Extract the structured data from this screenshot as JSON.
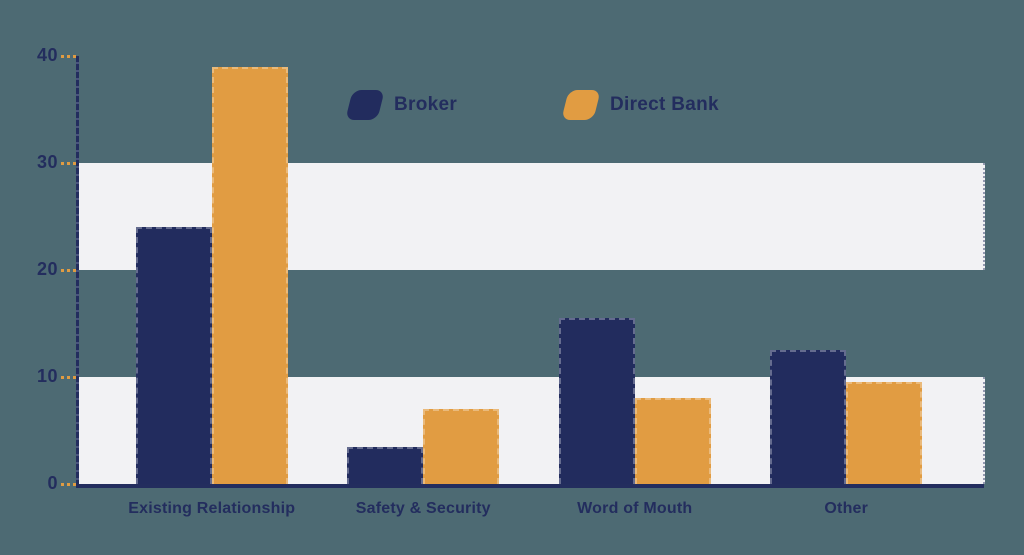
{
  "chart_data": {
    "type": "bar",
    "title": "",
    "xlabel": "",
    "ylabel": "",
    "categories": [
      "Existing Relationship",
      "Safety & Security",
      "Word of Mouth",
      "Other"
    ],
    "series": [
      {
        "name": "Broker",
        "color": "#222c5e",
        "values": [
          24,
          3.5,
          15.5,
          12.5
        ]
      },
      {
        "name": "Direct Bank",
        "color": "#e19c42",
        "values": [
          39,
          7,
          8,
          9.5
        ]
      }
    ],
    "yticks": [
      0,
      10,
      20,
      30,
      40
    ],
    "ylim": [
      0,
      40
    ],
    "grid_bands": [
      [
        20,
        30
      ],
      [
        0,
        10
      ]
    ],
    "grid": "striped-bands",
    "legend_position": "top-center"
  },
  "colors": {
    "background": "#4d6a73",
    "band": "#f2f2f4",
    "axis": "#232d5e",
    "tick_mark": "#e19c42",
    "label_text": "#232d5e"
  }
}
